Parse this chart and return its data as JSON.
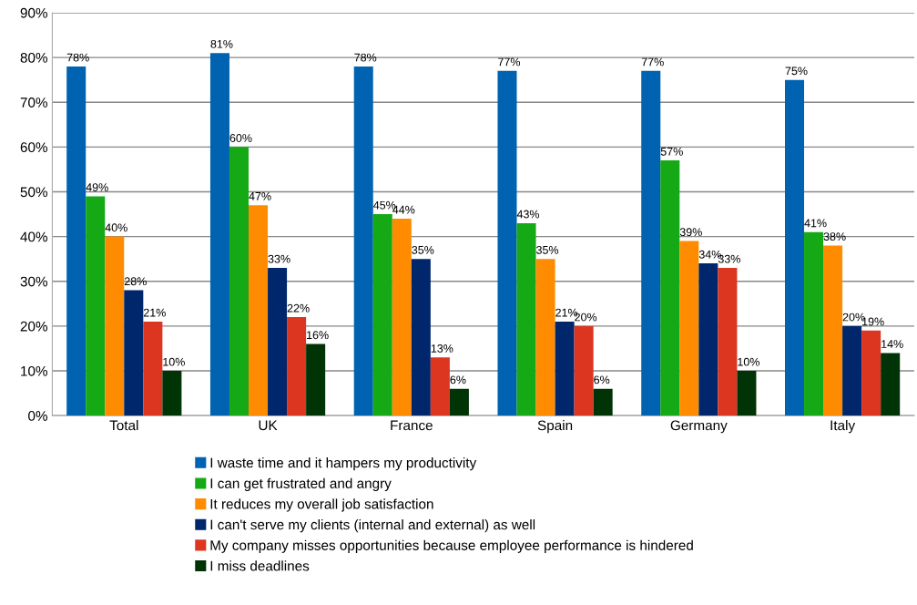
{
  "chart_data": {
    "type": "bar",
    "categories": [
      "Total",
      "UK",
      "France",
      "Spain",
      "Germany",
      "Italy"
    ],
    "series": [
      {
        "name": "I waste time and it hampers my productivity",
        "color": "#0063b1",
        "values": [
          78,
          81,
          78,
          77,
          77,
          75
        ],
        "value_labels": [
          "78%",
          "81%",
          "78%",
          "77%",
          "77%",
          "75%"
        ]
      },
      {
        "name": "I can get frustrated and angry",
        "color": "#16a916",
        "values": [
          49,
          60,
          45,
          43,
          57,
          41
        ],
        "value_labels": [
          "49%",
          "60%",
          "45%",
          "43%",
          "57%",
          "41%"
        ]
      },
      {
        "name": "It reduces my overall job satisfaction",
        "color": "#ff8c00",
        "values": [
          40,
          47,
          44,
          35,
          39,
          38
        ],
        "value_labels": [
          "40%",
          "47%",
          "44%",
          "35%",
          "39%",
          "38%"
        ]
      },
      {
        "name": "I can't serve my clients (internal and external) as well",
        "color": "#00266b",
        "values": [
          28,
          33,
          35,
          21,
          34,
          20
        ],
        "value_labels": [
          "28%",
          "33%",
          "35%",
          "21%",
          "34%",
          "20%"
        ]
      },
      {
        "name": "My company misses opportunities because employee performance is hindered",
        "color": "#dc3520",
        "values": [
          21,
          22,
          13,
          20,
          33,
          19
        ],
        "value_labels": [
          "21%",
          "22%",
          "13%",
          "20%",
          "33%",
          "19%"
        ]
      },
      {
        "name": "I miss deadlines",
        "color": "#003305",
        "values": [
          10,
          16,
          6,
          6,
          10,
          14
        ],
        "value_labels": [
          "10%",
          "16%",
          "6%",
          "6%",
          "10%",
          "14%"
        ]
      }
    ],
    "ylim": [
      0,
      90
    ],
    "yticks": [
      {
        "value": 0,
        "label": "0%"
      },
      {
        "value": 10,
        "label": "10%"
      },
      {
        "value": 20,
        "label": "20%"
      },
      {
        "value": 30,
        "label": "30%"
      },
      {
        "value": 40,
        "label": "40%"
      },
      {
        "value": 50,
        "label": "50%"
      },
      {
        "value": 60,
        "label": "60%"
      },
      {
        "value": 70,
        "label": "70%"
      },
      {
        "value": 80,
        "label": "80%"
      },
      {
        "value": 90,
        "label": "90%"
      }
    ],
    "grid": "y",
    "legend": "bottom"
  }
}
